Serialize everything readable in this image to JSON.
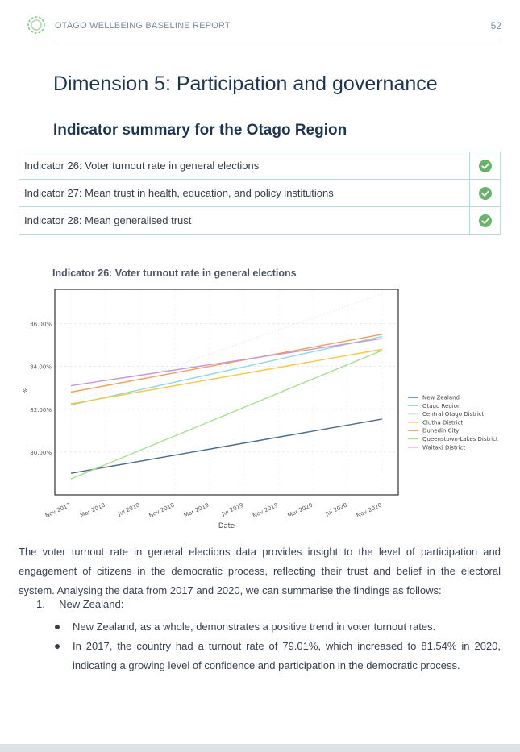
{
  "header": {
    "title": "OTAGO WELLBEING BASELINE REPORT",
    "page_number": "52",
    "accent_color": "#6ab46a"
  },
  "dimension_title": "Dimension 5: Participation and governance",
  "summary_title": "Indicator summary for the Otago Region",
  "indicators": [
    {
      "label": "Indicator 26: Voter turnout rate in general elections",
      "status_icon": "check-circle-icon"
    },
    {
      "label": "Indicator 27: Mean trust in health, education, and policy institutions",
      "status_icon": "check-circle-icon"
    },
    {
      "label": "Indicator 28: Mean generalised trust",
      "status_icon": "check-circle-icon"
    }
  ],
  "chart_title": "Indicator 26: Voter turnout rate in general elections",
  "chart_data": {
    "type": "line",
    "xlabel": "Date",
    "ylabel": "%",
    "x_ticks": [
      "Nov 2017",
      "Mar 2018",
      "Jul 2018",
      "Nov 2018",
      "Mar 2019",
      "Jul 2019",
      "Nov 2019",
      "Mar 2020",
      "Jul 2020",
      "Nov 2020"
    ],
    "y_ticks": [
      "80.00%",
      "82.00%",
      "84.00%",
      "86.00%"
    ],
    "ylim": [
      78.0,
      87.6
    ],
    "x": [
      "Nov 2017",
      "Nov 2020"
    ],
    "grid": true,
    "legend": "right",
    "series": [
      {
        "name": "New Zealand",
        "values": [
          79.01,
          81.54
        ],
        "color": "#4a6a8a"
      },
      {
        "name": "Otago Region",
        "values": [
          82.2,
          85.4
        ],
        "color": "#8fd8e0"
      },
      {
        "name": "Central Otago District",
        "values": [
          82.3,
          87.4
        ],
        "color": "#e8edf2"
      },
      {
        "name": "Clutha District",
        "values": [
          82.25,
          84.8
        ],
        "color": "#f5c842"
      },
      {
        "name": "Dunedin City",
        "values": [
          82.8,
          85.5
        ],
        "color": "#f0a050"
      },
      {
        "name": "Queenstown-Lakes District",
        "values": [
          78.75,
          84.75
        ],
        "color": "#a8e090"
      },
      {
        "name": "Waitaki District",
        "values": [
          83.1,
          85.3
        ],
        "color": "#c498d8"
      }
    ]
  },
  "body_text": "The voter turnout rate in general elections data provides insight to the level of participation and engagement of citizens in the democratic process, reflecting their trust and belief in the electoral system. Analysing the data from 2017 and 2020, we can summarise the findings as follows:",
  "list": {
    "number": "1.",
    "heading": "New Zealand:",
    "bullets": [
      "New Zealand, as a whole, demonstrates a positive trend in voter turnout rates.",
      "In 2017, the country had a turnout rate of 79.01%, which increased to 81.54% in 2020, indicating a growing level of confidence and participation in the democratic process."
    ]
  }
}
